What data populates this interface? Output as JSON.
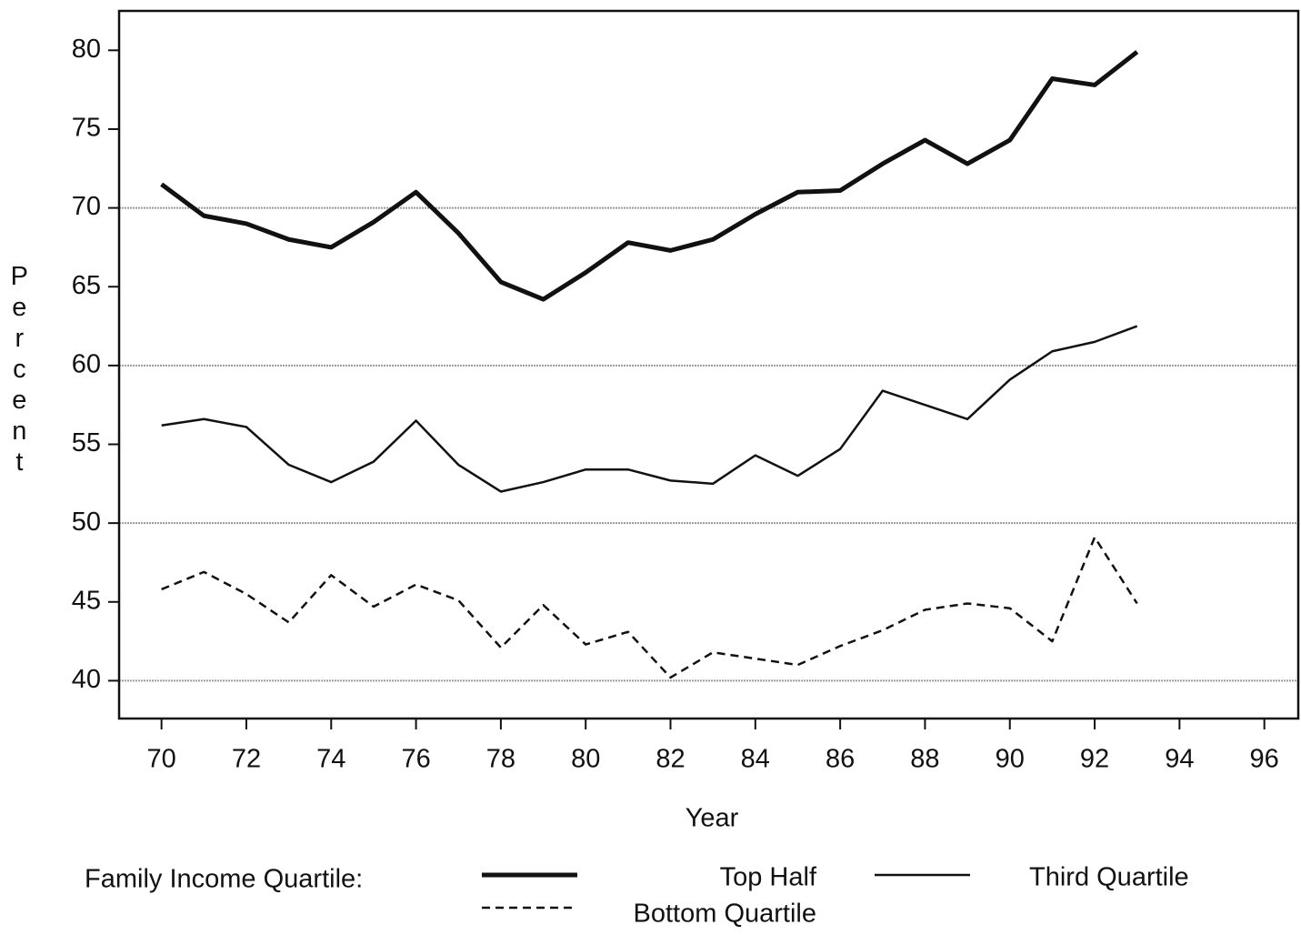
{
  "chart_data": {
    "type": "line",
    "x_label": "Year",
    "y_label": "Percent",
    "legend_title": "Family Income Quartile:",
    "x": [
      70,
      71,
      72,
      73,
      74,
      75,
      76,
      77,
      78,
      79,
      80,
      81,
      82,
      83,
      84,
      85,
      86,
      87,
      88,
      89,
      90,
      91,
      92,
      93
    ],
    "series": [
      {
        "name": "Top Half",
        "color": "#111111",
        "style": "thick",
        "values": [
          71.5,
          69.5,
          69.0,
          68.0,
          67.5,
          69.1,
          71.0,
          68.4,
          65.3,
          64.2,
          65.9,
          67.8,
          67.3,
          68.0,
          69.6,
          71.0,
          71.1,
          72.8,
          74.3,
          72.8,
          74.3,
          78.2,
          77.8,
          79.9
        ]
      },
      {
        "name": "Third Quartile",
        "color": "#111111",
        "style": "solid",
        "values": [
          56.2,
          56.6,
          56.1,
          53.7,
          52.6,
          53.9,
          56.5,
          53.7,
          52.0,
          52.6,
          53.4,
          53.4,
          52.7,
          52.5,
          54.3,
          53.0,
          54.7,
          58.4,
          57.5,
          56.6,
          59.1,
          60.9,
          61.5,
          62.5
        ]
      },
      {
        "name": "Bottom Quartile",
        "color": "#111111",
        "style": "dashed",
        "values": [
          45.8,
          46.9,
          45.5,
          43.7,
          46.7,
          44.7,
          46.1,
          45.1,
          42.1,
          44.8,
          42.3,
          43.1,
          40.2,
          41.8,
          41.4,
          41.0,
          42.2,
          43.2,
          44.5,
          44.9,
          44.6,
          42.5,
          49.1,
          44.9
        ]
      }
    ],
    "xlim": [
      69.0,
      96.8
    ],
    "ylim": [
      37.6,
      82.5
    ],
    "xticks": [
      70,
      72,
      74,
      76,
      78,
      80,
      82,
      84,
      86,
      88,
      90,
      92,
      94,
      96
    ],
    "yticks": [
      40,
      45,
      50,
      55,
      60,
      65,
      70,
      75,
      80
    ],
    "grid_lines": [
      40,
      50,
      60,
      70
    ],
    "grid_color": "#9a9a9a"
  }
}
